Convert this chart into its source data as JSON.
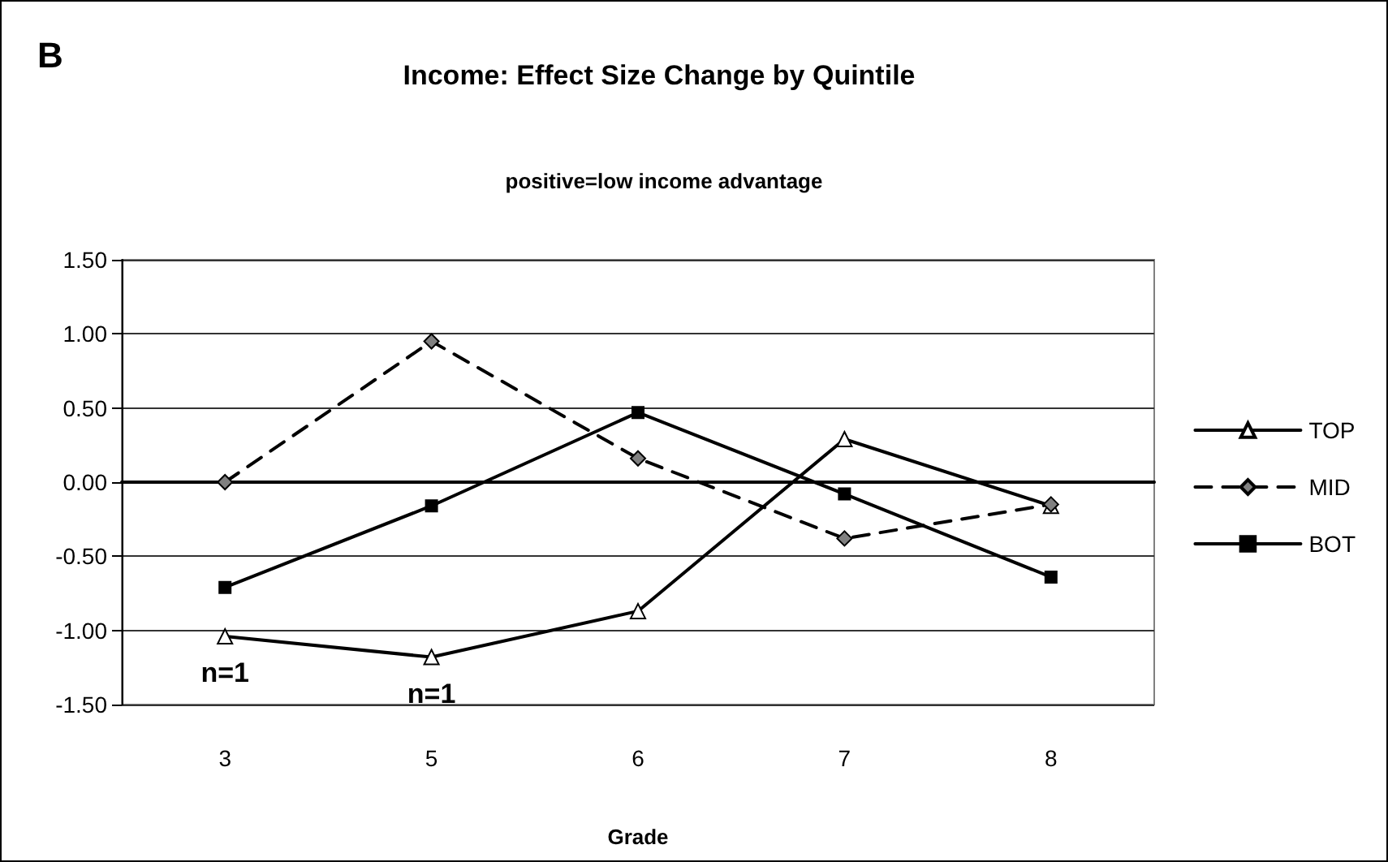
{
  "chart_data": {
    "type": "line",
    "title": "Income: Effect Size Change by Quintile",
    "subtitle": "positive=low income advantage",
    "xlabel": "Grade",
    "categories": [
      "3",
      "5",
      "6",
      "7",
      "8"
    ],
    "series": [
      {
        "name": "TOP",
        "color": "#000000",
        "colors": [
          "#ffffff",
          "#ffffff",
          "#ffffff",
          "#ffffff",
          "#ffffff"
        ],
        "marker": "triangle",
        "line_style": "solid",
        "values": [
          -1.04,
          -1.18,
          -0.87,
          0.29,
          -0.16
        ]
      },
      {
        "name": "MID",
        "color": "#000000",
        "colors": [
          "#808080",
          "#808080",
          "#808080",
          "#808080",
          "#808080"
        ],
        "marker": "diamond",
        "line_style": "dashed",
        "values": [
          0.0,
          0.95,
          0.16,
          -0.38,
          -0.15
        ]
      },
      {
        "name": "BOT",
        "color": "#000000",
        "colors": [
          "#000000",
          "#000000",
          "#000000",
          "#000000",
          "#000000"
        ],
        "marker": "square",
        "line_style": "solid",
        "values": [
          -0.71,
          -0.16,
          0.47,
          -0.08,
          -0.64
        ]
      }
    ],
    "ylim": [
      -1.5,
      1.5
    ],
    "yticks": [
      {
        "value": -1.5,
        "label": "-1.50"
      },
      {
        "value": -1.0,
        "label": "-1.00"
      },
      {
        "value": -0.5,
        "label": "-0.50"
      },
      {
        "value": 0,
        "label": "0.00"
      },
      {
        "value": 0.5,
        "label": "0.50"
      },
      {
        "value": 1.0,
        "label": "1.00"
      },
      {
        "value": 1.5,
        "label": "1.50"
      }
    ],
    "grid": "y",
    "legend": "right",
    "annotations": [
      "B",
      {
        "text": "n=1",
        "x": "3",
        "y": -1.04
      },
      {
        "text": "n=1",
        "x": "5",
        "y": -1.18
      }
    ]
  }
}
